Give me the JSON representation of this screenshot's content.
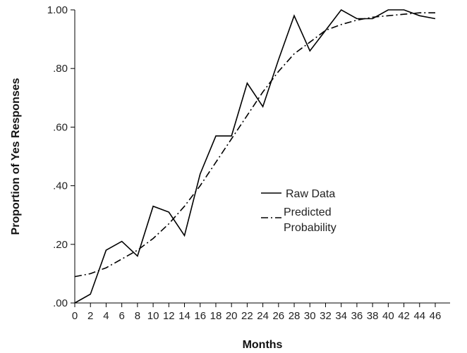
{
  "chart_data": {
    "type": "line",
    "xlabel": "Months",
    "ylabel": "Proportion of Yes Responses",
    "x": [
      0,
      2,
      4,
      6,
      8,
      10,
      12,
      14,
      16,
      18,
      20,
      22,
      24,
      26,
      28,
      30,
      32,
      34,
      36,
      38,
      40,
      42,
      44,
      46
    ],
    "x_tick_labels": [
      "0",
      "2",
      "4",
      "6",
      "8",
      "10",
      "12",
      "14",
      "16",
      "18",
      "20",
      "22",
      "24",
      "26",
      "28",
      "30",
      "32",
      "34",
      "36",
      "38",
      "40",
      "42",
      "44",
      "46"
    ],
    "y_ticks": [
      0,
      0.2,
      0.4,
      0.6,
      0.8,
      1.0
    ],
    "y_tick_labels": [
      ".00",
      ".20",
      ".40",
      ".60",
      ".80",
      "1.00"
    ],
    "ylim": [
      0,
      1.0
    ],
    "xlim": [
      0,
      46
    ],
    "grid": false,
    "legend_position": "center-right",
    "series": [
      {
        "name": "Raw Data",
        "style": "solid",
        "color": "#000000",
        "values": [
          0.0,
          0.03,
          0.18,
          0.21,
          0.16,
          0.33,
          0.31,
          0.23,
          0.44,
          0.57,
          0.57,
          0.75,
          0.67,
          0.83,
          0.98,
          0.86,
          0.93,
          1.0,
          0.97,
          0.97,
          1.0,
          1.0,
          0.98,
          0.97
        ]
      },
      {
        "name": "Predicted Probability",
        "name_lines": [
          "Predicted",
          "Probability"
        ],
        "style": "dash-dot",
        "color": "#000000",
        "values": [
          0.09,
          0.1,
          0.12,
          0.15,
          0.18,
          0.22,
          0.27,
          0.33,
          0.4,
          0.48,
          0.56,
          0.64,
          0.72,
          0.79,
          0.85,
          0.89,
          0.93,
          0.95,
          0.965,
          0.975,
          0.98,
          0.985,
          0.99,
          0.99
        ]
      }
    ]
  }
}
